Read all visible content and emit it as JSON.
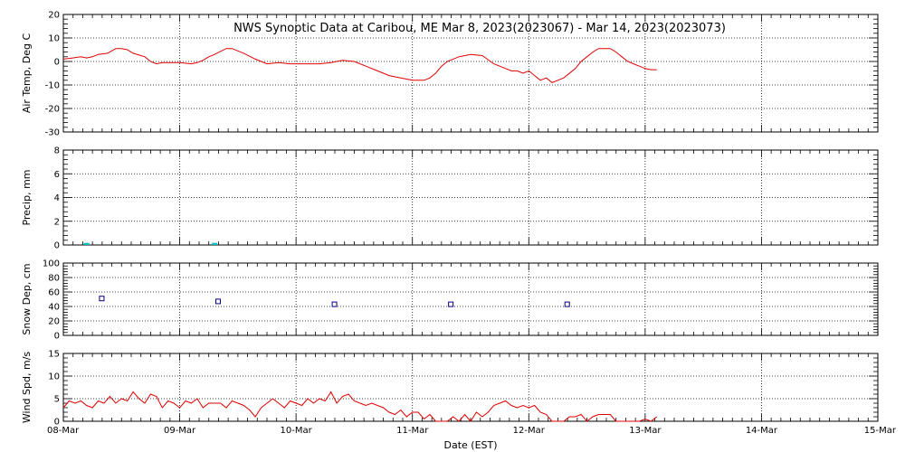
{
  "title": "NWS Synoptic Data at Caribou, ME   Mar  8, 2023(2023067) - Mar 14, 2023(2023073)",
  "xlabel": "Date (EST)",
  "x_ticks": [
    "08-Mar",
    "09-Mar",
    "10-Mar",
    "11-Mar",
    "12-Mar",
    "13-Mar",
    "14-Mar",
    "15-Mar"
  ],
  "colors": {
    "temp": "#e00000",
    "precip": "#00c0c0",
    "snow": "#000080",
    "wind": "#e00000",
    "axes": "#000000"
  },
  "chart_data": [
    {
      "type": "line",
      "name": "air-temp",
      "ylabel": "Air Temp, Deg C",
      "ylim": [
        -30,
        20
      ],
      "xlim": [
        0,
        7
      ],
      "yticks": [
        20,
        10,
        0,
        -10,
        -20,
        -30
      ],
      "grid": true,
      "series": [
        {
          "x": [
            0,
            0.08,
            0.15,
            0.2,
            0.25,
            0.3,
            0.38,
            0.45,
            0.5,
            0.55,
            0.6,
            0.7,
            0.75,
            0.8,
            0.85,
            0.9,
            0.95,
            1.0,
            1.1,
            1.15,
            1.2,
            1.25,
            1.3,
            1.4,
            1.45,
            1.55,
            1.65,
            1.75,
            1.85,
            1.95,
            2.0,
            2.1,
            2.2,
            2.3,
            2.4,
            2.5,
            2.6,
            2.7,
            2.8,
            2.9,
            3.0,
            3.1,
            3.15,
            3.2,
            3.25,
            3.3,
            3.4,
            3.5,
            3.6,
            3.7,
            3.8,
            3.85,
            3.9,
            3.95,
            4.0,
            4.05,
            4.1,
            4.15,
            4.2,
            4.25,
            4.3,
            4.4,
            4.45,
            4.5,
            4.55,
            4.6,
            4.65,
            4.7,
            4.75,
            4.8,
            4.85,
            4.9,
            4.95,
            5.0,
            5.05,
            5.1
          ],
          "y": [
            1,
            1.5,
            2,
            1.5,
            2,
            3,
            3.5,
            5.5,
            5.5,
            5,
            3.5,
            2,
            0,
            -1,
            -0.5,
            -0.5,
            -0.5,
            -0.5,
            -1,
            -0.5,
            0.5,
            2,
            3,
            5.5,
            5.5,
            3.5,
            1,
            -1,
            -0.5,
            -1,
            -1,
            -1,
            -1,
            -0.5,
            0.5,
            0,
            -2,
            -4,
            -6,
            -7,
            -8,
            -8,
            -7,
            -5,
            -2,
            0,
            2,
            3,
            2.5,
            -1,
            -3,
            -4,
            -4,
            -5,
            -4,
            -6,
            -8,
            -7,
            -9,
            -8,
            -7,
            -3,
            0,
            2,
            4,
            5.5,
            5.5,
            5.5,
            4,
            2,
            0,
            -1,
            -2,
            -3,
            -3.5,
            -3.5
          ]
        }
      ]
    },
    {
      "type": "bar",
      "name": "precip",
      "ylabel": "Precip, mm",
      "ylim": [
        0,
        8
      ],
      "xlim": [
        0,
        7
      ],
      "yticks": [
        8,
        6,
        4,
        2,
        0
      ],
      "grid": true,
      "series": [
        {
          "x": [
            0.2,
            1.3
          ],
          "values": [
            0.1,
            0.1
          ]
        }
      ]
    },
    {
      "type": "scatter",
      "name": "snow-depth",
      "ylabel": "Snow Dep, cm",
      "ylim": [
        0,
        100
      ],
      "xlim": [
        0,
        7
      ],
      "yticks": [
        100,
        80,
        60,
        40,
        20,
        0
      ],
      "grid": true,
      "series": [
        {
          "x": [
            0.33,
            1.33,
            2.33,
            3.33,
            4.33
          ],
          "y": [
            51,
            47,
            43,
            43,
            43
          ]
        }
      ]
    },
    {
      "type": "line",
      "name": "wind-speed",
      "ylabel": "Wind Spd, m/s",
      "ylim": [
        0,
        15
      ],
      "xlim": [
        0,
        7
      ],
      "yticks": [
        15,
        10,
        5,
        0
      ],
      "grid": true,
      "series": [
        {
          "x": [
            0,
            0.05,
            0.1,
            0.15,
            0.2,
            0.25,
            0.3,
            0.35,
            0.4,
            0.45,
            0.5,
            0.55,
            0.6,
            0.65,
            0.7,
            0.75,
            0.8,
            0.85,
            0.9,
            0.95,
            1.0,
            1.05,
            1.1,
            1.15,
            1.2,
            1.25,
            1.3,
            1.35,
            1.4,
            1.45,
            1.5,
            1.55,
            1.6,
            1.65,
            1.7,
            1.75,
            1.8,
            1.85,
            1.9,
            1.95,
            2.0,
            2.05,
            2.1,
            2.15,
            2.2,
            2.25,
            2.3,
            2.35,
            2.4,
            2.45,
            2.5,
            2.55,
            2.6,
            2.65,
            2.7,
            2.75,
            2.8,
            2.85,
            2.9,
            2.95,
            3.0,
            3.05,
            3.1,
            3.15,
            3.2,
            3.25,
            3.3,
            3.35,
            3.4,
            3.45,
            3.5,
            3.55,
            3.6,
            3.65,
            3.7,
            3.75,
            3.8,
            3.85,
            3.9,
            3.95,
            4.0,
            4.05,
            4.1,
            4.15,
            4.2,
            4.25,
            4.3,
            4.35,
            4.4,
            4.45,
            4.5,
            4.55,
            4.6,
            4.65,
            4.7,
            4.75,
            4.8,
            4.85,
            4.9,
            4.95,
            5.0,
            5.05,
            5.1
          ],
          "y": [
            3,
            4.5,
            4,
            4.5,
            3.5,
            3,
            4.5,
            4,
            5.5,
            4,
            5,
            4.5,
            6.5,
            5,
            4,
            6,
            5.5,
            3,
            4.5,
            4,
            3,
            4.5,
            4,
            5,
            3,
            4,
            4,
            4,
            3,
            4.5,
            4,
            3.5,
            2.5,
            1,
            3,
            4,
            5,
            4,
            3,
            4.5,
            4,
            3.5,
            5,
            4,
            5,
            4.5,
            6.5,
            4,
            5.5,
            6,
            4.5,
            4,
            3.5,
            4,
            3.5,
            3,
            2,
            1.5,
            2.5,
            1,
            2,
            2,
            0.5,
            1.5,
            0,
            0,
            0,
            1,
            0,
            1.5,
            0,
            2,
            1,
            2,
            3.5,
            4,
            4.5,
            3.5,
            3,
            3.5,
            3,
            3.5,
            2,
            1.5,
            0,
            0,
            0,
            1,
            1,
            1.5,
            0,
            1,
            1.5,
            1.5,
            1.5,
            0,
            0,
            0,
            0,
            0,
            0.5,
            0,
            1
          ]
        }
      ]
    }
  ]
}
